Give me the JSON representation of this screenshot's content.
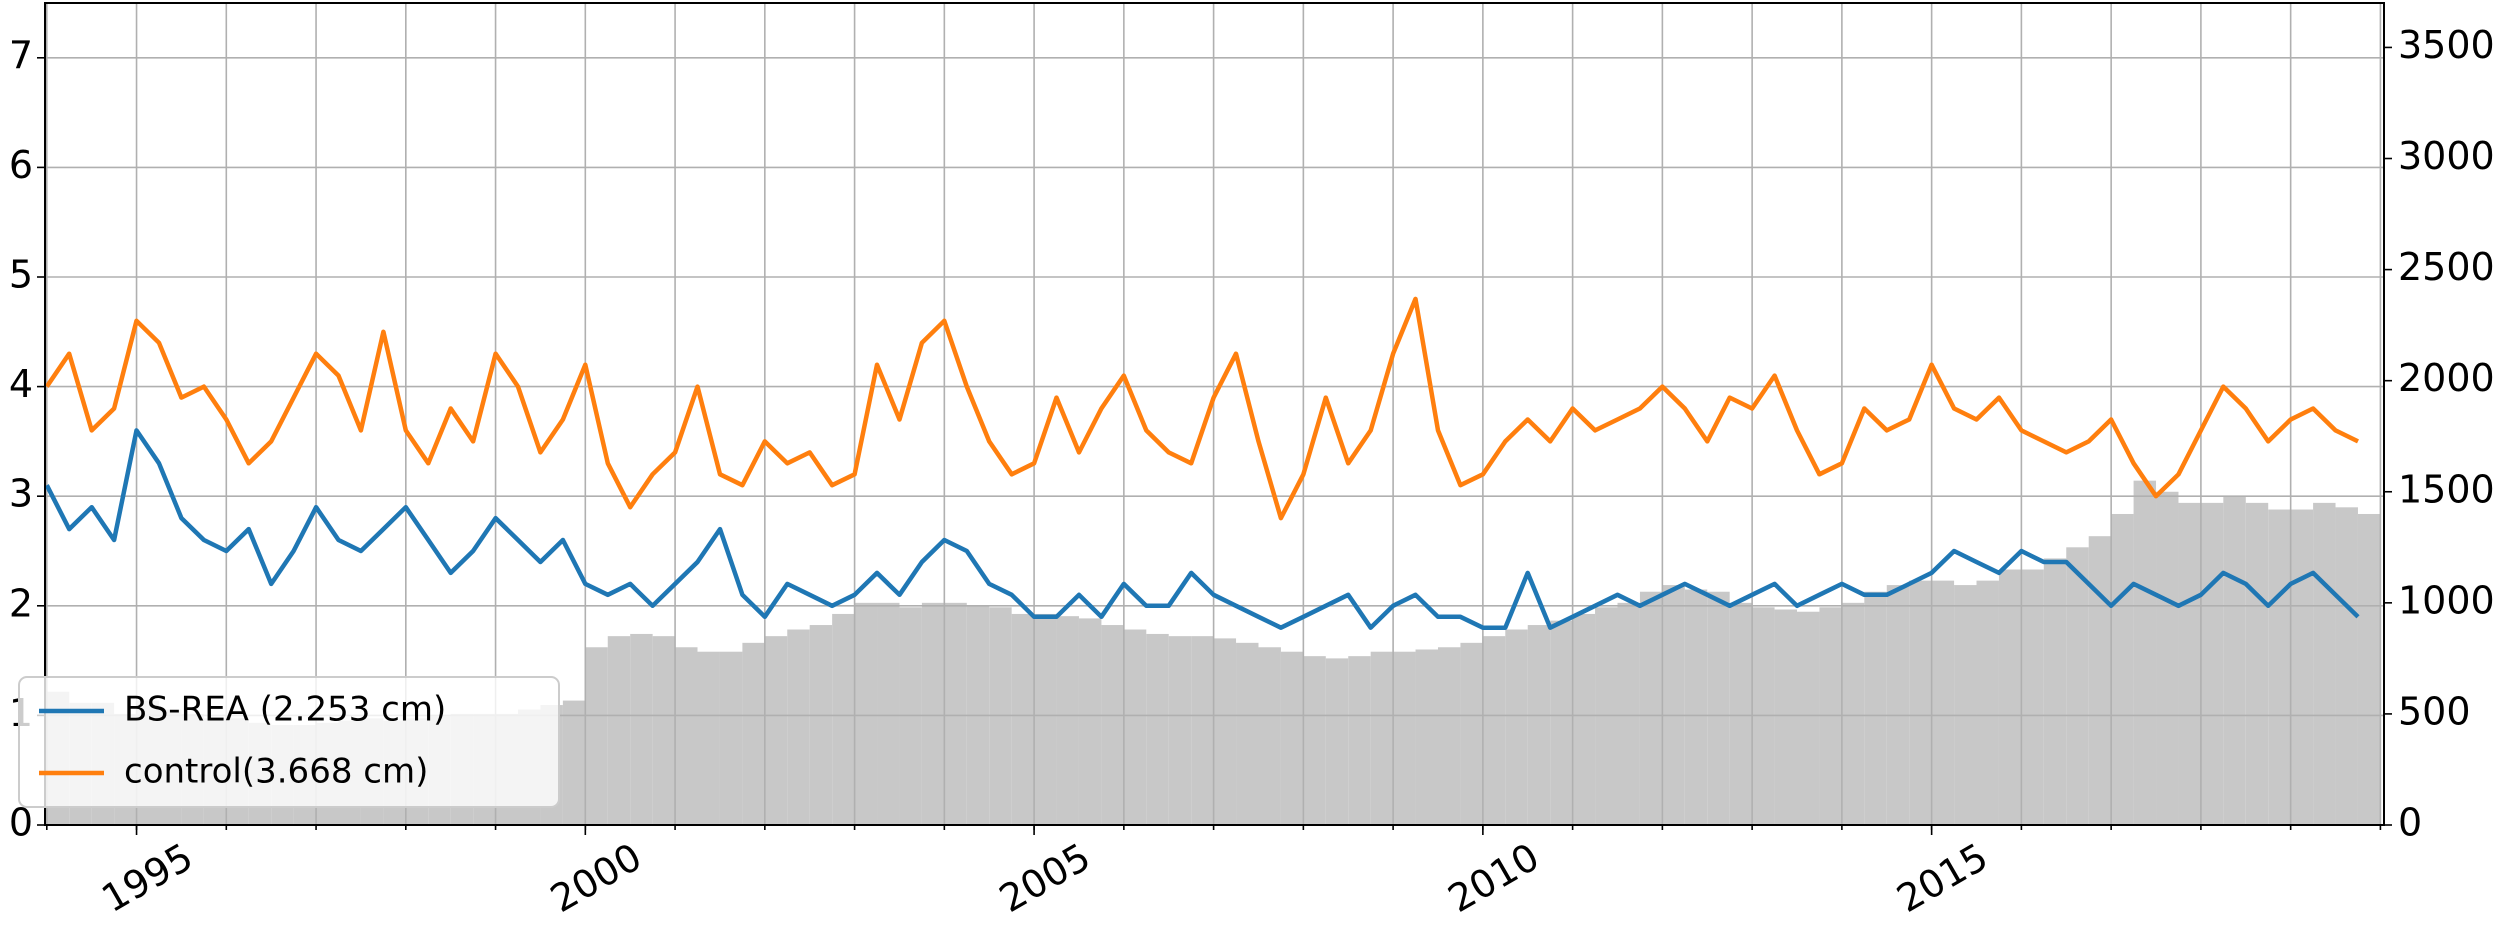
{
  "chart_data": {
    "type": "line",
    "x": [
      1994.0,
      1994.25,
      1994.5,
      1994.75,
      1995.0,
      1995.25,
      1995.5,
      1995.75,
      1996.0,
      1996.25,
      1996.5,
      1996.75,
      1997.0,
      1997.25,
      1997.5,
      1997.75,
      1998.0,
      1998.25,
      1998.5,
      1998.75,
      1999.0,
      1999.25,
      1999.5,
      1999.75,
      2000.0,
      2000.25,
      2000.5,
      2000.75,
      2001.0,
      2001.25,
      2001.5,
      2001.75,
      2002.0,
      2002.25,
      2002.5,
      2002.75,
      2003.0,
      2003.25,
      2003.5,
      2003.75,
      2004.0,
      2004.25,
      2004.5,
      2004.75,
      2005.0,
      2005.25,
      2005.5,
      2005.75,
      2006.0,
      2006.25,
      2006.5,
      2006.75,
      2007.0,
      2007.25,
      2007.5,
      2007.75,
      2008.0,
      2008.25,
      2008.5,
      2008.75,
      2009.0,
      2009.25,
      2009.5,
      2009.75,
      2010.0,
      2010.25,
      2010.5,
      2010.75,
      2011.0,
      2011.25,
      2011.5,
      2011.75,
      2012.0,
      2012.25,
      2012.5,
      2012.75,
      2013.0,
      2013.25,
      2013.5,
      2013.75,
      2014.0,
      2014.25,
      2014.5,
      2014.75,
      2015.0,
      2015.25,
      2015.5,
      2015.75,
      2016.0,
      2016.25,
      2016.5,
      2016.75,
      2017.0,
      2017.25,
      2017.5,
      2017.75,
      2018.0,
      2018.25,
      2018.5,
      2018.75,
      2019.0,
      2019.25,
      2019.5,
      2019.75
    ],
    "series": [
      {
        "name": "BS-REA (2.253 cm)",
        "color": "#1f77b4",
        "values": [
          3.1,
          2.7,
          2.9,
          2.6,
          3.6,
          3.3,
          2.8,
          2.6,
          2.5,
          2.7,
          2.2,
          2.5,
          2.9,
          2.6,
          2.5,
          2.7,
          2.9,
          2.6,
          2.3,
          2.5,
          2.8,
          2.6,
          2.4,
          2.6,
          2.2,
          2.1,
          2.2,
          2.0,
          2.2,
          2.4,
          2.7,
          2.1,
          1.9,
          2.2,
          2.1,
          2.0,
          2.1,
          2.3,
          2.1,
          2.4,
          2.6,
          2.5,
          2.2,
          2.1,
          1.9,
          1.9,
          2.1,
          1.9,
          2.2,
          2.0,
          2.0,
          2.3,
          2.1,
          2.0,
          1.9,
          1.8,
          1.9,
          2.0,
          2.1,
          1.8,
          2.0,
          2.1,
          1.9,
          1.9,
          1.8,
          1.8,
          2.3,
          1.8,
          1.9,
          2.0,
          2.1,
          2.0,
          2.1,
          2.2,
          2.1,
          2.0,
          2.1,
          2.2,
          2.0,
          2.1,
          2.2,
          2.1,
          2.1,
          2.2,
          2.3,
          2.5,
          2.4,
          2.3,
          2.5,
          2.4,
          2.4,
          2.2,
          2.0,
          2.2,
          2.1,
          2.0,
          2.1,
          2.3,
          2.2,
          2.0,
          2.2,
          2.3,
          2.1,
          1.9
        ]
      },
      {
        "name": "control(3.668 cm)",
        "color": "#ff7f0e",
        "values": [
          4.0,
          4.3,
          3.6,
          3.8,
          4.6,
          4.4,
          3.9,
          4.0,
          3.7,
          3.3,
          3.5,
          3.9,
          4.3,
          4.1,
          3.6,
          4.5,
          3.6,
          3.3,
          3.8,
          3.5,
          4.3,
          4.0,
          3.4,
          3.7,
          4.2,
          3.3,
          2.9,
          3.2,
          3.4,
          4.0,
          3.2,
          3.1,
          3.5,
          3.3,
          3.4,
          3.1,
          3.2,
          4.2,
          3.7,
          4.4,
          4.6,
          4.0,
          3.5,
          3.2,
          3.3,
          3.9,
          3.4,
          3.8,
          4.1,
          3.6,
          3.4,
          3.3,
          3.9,
          4.3,
          3.5,
          2.8,
          3.2,
          3.9,
          3.3,
          3.6,
          4.3,
          4.8,
          3.6,
          3.1,
          3.2,
          3.5,
          3.7,
          3.5,
          3.8,
          3.6,
          3.7,
          3.8,
          4.0,
          3.8,
          3.5,
          3.9,
          3.8,
          4.1,
          3.6,
          3.2,
          3.3,
          3.8,
          3.6,
          3.7,
          4.2,
          3.8,
          3.7,
          3.9,
          3.6,
          3.5,
          3.4,
          3.5,
          3.7,
          3.3,
          3.0,
          3.2,
          3.6,
          4.0,
          3.8,
          3.5,
          3.7,
          3.8,
          3.6,
          3.5
        ]
      }
    ],
    "bars": {
      "color": "#c8c8c8",
      "axis": "y2",
      "values": [
        600,
        550,
        550,
        500,
        560,
        520,
        500,
        480,
        480,
        460,
        450,
        450,
        460,
        470,
        480,
        470,
        480,
        490,
        500,
        500,
        500,
        520,
        540,
        560,
        800,
        850,
        860,
        850,
        800,
        780,
        780,
        820,
        850,
        880,
        900,
        950,
        1000,
        1000,
        980,
        1000,
        1000,
        990,
        980,
        950,
        950,
        940,
        930,
        900,
        880,
        860,
        850,
        850,
        840,
        820,
        800,
        780,
        760,
        750,
        760,
        780,
        780,
        790,
        800,
        820,
        850,
        880,
        900,
        920,
        950,
        980,
        1000,
        1050,
        1080,
        1060,
        1050,
        1000,
        980,
        970,
        960,
        980,
        1000,
        1050,
        1080,
        1100,
        1100,
        1080,
        1100,
        1150,
        1150,
        1200,
        1250,
        1300,
        1400,
        1550,
        1500,
        1450,
        1450,
        1480,
        1450,
        1420,
        1420,
        1450,
        1430,
        1400
      ]
    },
    "xlim": [
      1993.98,
      2020.04
    ],
    "xticks": [
      1995,
      2000,
      2005,
      2010,
      2015
    ],
    "xgrid": [
      1994,
      1995,
      1996,
      1997,
      1998,
      1999,
      2000,
      2001,
      2002,
      2003,
      2004,
      2005,
      2006,
      2007,
      2008,
      2009,
      2010,
      2011,
      2012,
      2013,
      2014,
      2015,
      2016,
      2017,
      2018,
      2019,
      2020
    ],
    "ylim": [
      0,
      7.5
    ],
    "yticks": [
      0,
      1,
      2,
      3,
      4,
      5,
      6,
      7
    ],
    "y2lim": [
      0,
      3700
    ],
    "y2ticks": [
      0,
      500,
      1000,
      1500,
      2000,
      2500,
      3000,
      3500
    ],
    "grid": true,
    "legend": "lower left"
  }
}
